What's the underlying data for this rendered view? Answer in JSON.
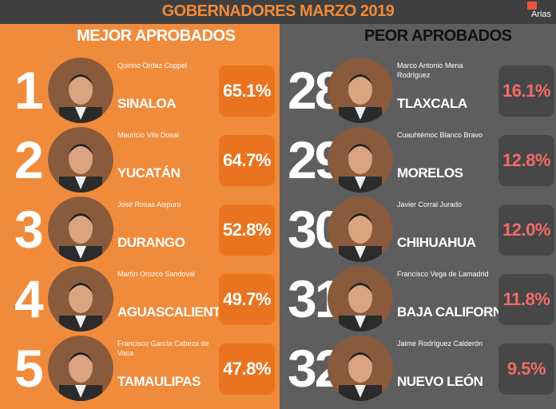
{
  "header": {
    "title": "GOBERNADORES MARZO 2019",
    "logo": "Arias"
  },
  "best": {
    "title": "MEJOR APROBADOS",
    "rows": [
      {
        "rank": "1",
        "name": "Quirino Ordaz Coppel",
        "state": "SINALOA",
        "approval": "65.1%"
      },
      {
        "rank": "2",
        "name": "Mauricio Vila Dosal",
        "state": "YUCATÁN",
        "approval": "64.7%"
      },
      {
        "rank": "3",
        "name": "José Rosas Aispuro",
        "state": "DURANGO",
        "approval": "52.8%"
      },
      {
        "rank": "4",
        "name": "Martín Orozco Sandoval",
        "state": "AGUASCALIENTES",
        "approval": "49.7%"
      },
      {
        "rank": "5",
        "name": "Francisco García Cabeza de Vaca",
        "state": "TAMAULIPAS",
        "approval": "47.8%"
      }
    ]
  },
  "worst": {
    "title": "PEOR APROBADOS",
    "rows": [
      {
        "rank": "28",
        "name": "Marco Antonio Mena Rodríguez",
        "state": "TLAXCALA",
        "approval": "16.1%"
      },
      {
        "rank": "29",
        "name": "Cuauhtémoc Blanco Bravo",
        "state": "MORELOS",
        "approval": "12.8%"
      },
      {
        "rank": "30",
        "name": "Javier Corral Jurado",
        "state": "CHIHUAHUA",
        "approval": "12.0%"
      },
      {
        "rank": "31",
        "name": "Francisco Vega de Lamadrid",
        "state": "BAJA CALIFORNIA",
        "approval": "11.8%"
      },
      {
        "rank": "32",
        "name": "Jaime Rodríguez Calderón",
        "state": "NUEVO LEÓN",
        "approval": "9.5%"
      }
    ]
  }
}
